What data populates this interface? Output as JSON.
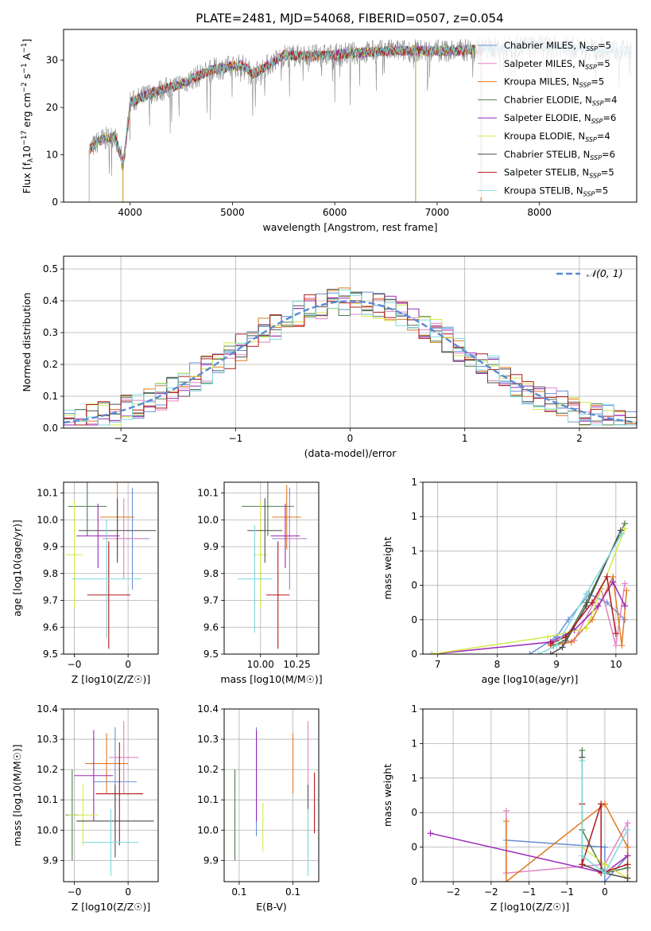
{
  "figure": {
    "title": "PLATE=2481, MJD=54068, FIBERID=0507, z=0.054"
  },
  "models": [
    {
      "name": "Chabrier MILES",
      "nssp": "5",
      "color": "#6a8fd6"
    },
    {
      "name": "Salpeter MILES",
      "nssp": "5",
      "color": "#e383c4"
    },
    {
      "name": "Kroupa MILES",
      "nssp": "5",
      "color": "#e07b22"
    },
    {
      "name": "Chabrier ELODIE",
      "nssp": "4",
      "color": "#4f7d4f"
    },
    {
      "name": "Salpeter ELODIE",
      "nssp": "6",
      "color": "#9a28b8"
    },
    {
      "name": "Kroupa ELODIE",
      "nssp": "4",
      "color": "#d5e84a"
    },
    {
      "name": "Chabrier STELIB",
      "nssp": "6",
      "color": "#4d4d4d"
    },
    {
      "name": "Salpeter STELIB",
      "nssp": "5",
      "color": "#b0181c"
    },
    {
      "name": "Kroupa STELIB",
      "nssp": "5",
      "color": "#7fd9dd"
    }
  ],
  "chart_data": [
    {
      "id": "spectrum",
      "type": "line",
      "xlabel": "wavelength [Angstrom, rest frame]",
      "ylabel": "Flux [f_λ 10^-17 erg cm^-2 s^-1 A^-1]",
      "xlim": [
        3350,
        8950
      ],
      "ylim": [
        0,
        36.5
      ],
      "xticks": [
        4000,
        5000,
        6000,
        7000,
        8000
      ],
      "yticks": [
        0,
        10,
        20,
        30
      ],
      "legend_position": "upper-right",
      "spectrum_anchors": [
        [
          3600,
          11
        ],
        [
          3700,
          13
        ],
        [
          3850,
          14
        ],
        [
          3930,
          8
        ],
        [
          3960,
          13
        ],
        [
          4000,
          21
        ],
        [
          4200,
          23
        ],
        [
          4500,
          25
        ],
        [
          4800,
          28
        ],
        [
          5100,
          29
        ],
        [
          5200,
          27
        ],
        [
          5500,
          31
        ],
        [
          5900,
          31
        ],
        [
          6200,
          31.5
        ],
        [
          6500,
          32
        ],
        [
          6800,
          32
        ],
        [
          7200,
          32
        ],
        [
          7500,
          32.5
        ],
        [
          8000,
          33
        ],
        [
          8400,
          32.5
        ],
        [
          8900,
          32
        ]
      ]
    },
    {
      "id": "residuals",
      "type": "histogram",
      "xlabel": "(data-model)/error",
      "ylabel": "Normed distribution",
      "xlim": [
        -2.5,
        2.5
      ],
      "ylim": [
        0,
        0.54
      ],
      "xticks": [
        -2,
        -1,
        0,
        1,
        2
      ],
      "yticks": [
        0.0,
        0.1,
        0.2,
        0.3,
        0.4,
        0.5
      ],
      "reference_curve": "N(0,1)",
      "reference_label": "𝒩(0, 1)",
      "legend_position": "upper-right",
      "bin_width": 0.1
    },
    {
      "id": "age-vs-Z",
      "type": "errorbar",
      "xlabel": "Z [log10(Z/Z☉)]",
      "ylabel": "age  [log10(age/yr)]",
      "xlim": [
        -0.3,
        0.14
      ],
      "ylim": [
        9.5,
        10.14
      ],
      "xticks": [
        -0.25,
        0.0
      ],
      "yticks": [
        9.5,
        9.6,
        9.7,
        9.8,
        9.9,
        10.0,
        10.1
      ],
      "points": [
        {
          "x": 0.02,
          "y": 9.93,
          "xerr": 0.08,
          "yerr": 0.19
        },
        {
          "x": -0.02,
          "y": 9.93,
          "xerr": 0.1,
          "yerr": 0.15
        },
        {
          "x": -0.05,
          "y": 10.01,
          "xerr": 0.08,
          "yerr": 0.15
        },
        {
          "x": -0.19,
          "y": 10.05,
          "xerr": 0.09,
          "yerr": 0.11
        },
        {
          "x": -0.14,
          "y": 9.94,
          "xerr": 0.1,
          "yerr": 0.12
        },
        {
          "x": -0.25,
          "y": 9.87,
          "xerr": 0.04,
          "yerr": 0.2
        },
        {
          "x": -0.05,
          "y": 9.96,
          "xerr": 0.18,
          "yerr": 0.12
        },
        {
          "x": -0.09,
          "y": 9.72,
          "xerr": 0.1,
          "yerr": 0.2
        },
        {
          "x": -0.1,
          "y": 9.78,
          "xerr": 0.16,
          "yerr": 0.22
        }
      ]
    },
    {
      "id": "age-vs-mass",
      "type": "errorbar",
      "xlabel": "mass [log10(M/M☉)]",
      "ylabel": "",
      "xlim": [
        9.75,
        10.4
      ],
      "ylim": [
        9.5,
        10.14
      ],
      "xticks": [
        10.0,
        10.25
      ],
      "yticks": [
        9.5,
        9.6,
        9.7,
        9.8,
        9.9,
        10.0,
        10.1
      ],
      "points": [
        {
          "x": 10.2,
          "y": 9.93,
          "xerr": 0.12,
          "yerr": 0.19
        },
        {
          "x": 10.2,
          "y": 9.93,
          "xerr": 0.09,
          "yerr": 0.15
        },
        {
          "x": 10.18,
          "y": 10.01,
          "xerr": 0.1,
          "yerr": 0.12
        },
        {
          "x": 10.05,
          "y": 10.05,
          "xerr": 0.18,
          "yerr": 0.11
        },
        {
          "x": 10.17,
          "y": 9.94,
          "xerr": 0.1,
          "yerr": 0.12
        },
        {
          "x": 10.0,
          "y": 9.87,
          "xerr": 0.05,
          "yerr": 0.2
        },
        {
          "x": 10.03,
          "y": 9.96,
          "xerr": 0.12,
          "yerr": 0.12
        },
        {
          "x": 10.12,
          "y": 9.72,
          "xerr": 0.08,
          "yerr": 0.2
        },
        {
          "x": 9.96,
          "y": 9.78,
          "xerr": 0.12,
          "yerr": 0.2
        }
      ]
    },
    {
      "id": "weight-vs-age",
      "type": "line",
      "xlabel": "age  [log10(age/yr)]",
      "ylabel": "mass weight",
      "xlim": [
        6.75,
        10.35
      ],
      "ylim": [
        0,
        1.0
      ],
      "xticks": [
        7,
        8,
        9,
        10
      ],
      "yticks": [
        0.0,
        0.2,
        0.4,
        0.6,
        0.8,
        1.0
      ],
      "series": [
        {
          "x": [
            8.55,
            9.0,
            9.2,
            9.55,
            9.85,
            10.15
          ],
          "y": [
            0.0,
            0.1,
            0.2,
            0.35,
            0.3,
            0.2
          ]
        },
        {
          "x": [
            8.9,
            9.3,
            9.75,
            10.0,
            10.15
          ],
          "y": [
            0.05,
            0.08,
            0.38,
            0.05,
            0.41
          ]
        },
        {
          "x": [
            8.9,
            9.25,
            9.6,
            9.95,
            10.1,
            10.18
          ],
          "y": [
            0.05,
            0.07,
            0.2,
            0.45,
            0.05,
            0.37
          ]
        },
        {
          "x": [
            8.95,
            9.15,
            9.5,
            10.15
          ],
          "y": [
            0.05,
            0.08,
            0.3,
            0.76
          ]
        },
        {
          "x": [
            6.9,
            8.9,
            9.3,
            9.7,
            9.95,
            10.15
          ],
          "y": [
            0.0,
            0.07,
            0.14,
            0.28,
            0.42,
            0.28
          ]
        },
        {
          "x": [
            6.9,
            8.85,
            9.5,
            10.15
          ],
          "y": [
            0.0,
            0.1,
            0.15,
            0.73
          ]
        },
        {
          "x": [
            8.9,
            9.1,
            9.5,
            10.08
          ],
          "y": [
            0.0,
            0.04,
            0.28,
            0.72
          ]
        },
        {
          "x": [
            8.9,
            9.15,
            9.6,
            9.85,
            10.0
          ],
          "y": [
            0.06,
            0.1,
            0.3,
            0.45,
            0.12
          ]
        },
        {
          "x": [
            8.7,
            9.0,
            9.5,
            10.1
          ],
          "y": [
            0.0,
            0.05,
            0.35,
            0.7
          ]
        }
      ]
    },
    {
      "id": "mass-vs-Z",
      "type": "errorbar",
      "xlabel": "Z [log10(Z/Z☉)]",
      "ylabel": "mass [log10(M/M☉)]",
      "xlim": [
        -0.3,
        0.14
      ],
      "ylim": [
        9.83,
        10.4
      ],
      "xticks": [
        -0.25,
        0.0
      ],
      "yticks": [
        9.9,
        10.0,
        10.1,
        10.2,
        10.3,
        10.4
      ],
      "points": [
        {
          "x": -0.06,
          "y": 10.16,
          "xerr": 0.1,
          "yerr": 0.18
        },
        {
          "x": -0.02,
          "y": 10.24,
          "xerr": 0.07,
          "yerr": 0.12
        },
        {
          "x": -0.1,
          "y": 10.22,
          "xerr": 0.1,
          "yerr": 0.1
        },
        {
          "x": -0.26,
          "y": 10.05,
          "xerr": 0.03,
          "yerr": 0.15
        },
        {
          "x": -0.16,
          "y": 10.18,
          "xerr": 0.09,
          "yerr": 0.15
        },
        {
          "x": -0.21,
          "y": 10.05,
          "xerr": 0.07,
          "yerr": 0.1
        },
        {
          "x": -0.06,
          "y": 10.03,
          "xerr": 0.18,
          "yerr": 0.12
        },
        {
          "x": -0.04,
          "y": 10.12,
          "xerr": 0.11,
          "yerr": 0.17
        },
        {
          "x": -0.08,
          "y": 9.96,
          "xerr": 0.13,
          "yerr": 0.11
        }
      ]
    },
    {
      "id": "mass-vs-EBV",
      "type": "errorbar",
      "xlabel": "E(B-V)",
      "ylabel": "",
      "xlim": [
        0.068,
        0.112
      ],
      "ylim": [
        9.83,
        10.4
      ],
      "xticks": [
        0.075,
        0.1
      ],
      "yticks": [
        9.9,
        10.0,
        10.1,
        10.2,
        10.3,
        10.4
      ],
      "points": [
        {
          "x": 0.083,
          "y": 10.16,
          "xerr": 0.0,
          "yerr": 0.18
        },
        {
          "x": 0.107,
          "y": 10.24,
          "xerr": 0.0,
          "yerr": 0.12
        },
        {
          "x": 0.1,
          "y": 10.22,
          "xerr": 0.0,
          "yerr": 0.1
        },
        {
          "x": 0.073,
          "y": 10.05,
          "xerr": 0.0,
          "yerr": 0.15
        },
        {
          "x": 0.083,
          "y": 10.18,
          "xerr": 0.0,
          "yerr": 0.15
        },
        {
          "x": 0.086,
          "y": 10.01,
          "xerr": 0.0,
          "yerr": 0.08
        },
        {
          "x": 0.107,
          "y": 10.03,
          "xerr": 0.0,
          "yerr": 0.12
        },
        {
          "x": 0.11,
          "y": 10.09,
          "xerr": 0.0,
          "yerr": 0.1
        },
        {
          "x": 0.107,
          "y": 9.96,
          "xerr": 0.0,
          "yerr": 0.11
        }
      ]
    },
    {
      "id": "weight-vs-Z",
      "type": "line",
      "xlabel": "Z [log10(Z/Z☉)]",
      "ylabel": "mass weight",
      "xlim": [
        -2.4,
        0.42
      ],
      "ylim": [
        0,
        1.0
      ],
      "xticks": [
        -2.0,
        -1.5,
        -1.0,
        -0.5,
        0.0
      ],
      "yticks": [
        0.0,
        0.2,
        0.4,
        0.6,
        0.8,
        1.0
      ],
      "series": [
        {
          "x": [
            -1.3,
            0.0,
            0.0,
            0.3,
            0.3
          ],
          "y": [
            0.24,
            0.2,
            0.0,
            0.15,
            0.02
          ]
        },
        {
          "x": [
            -1.3,
            -1.3,
            0.0,
            0.3,
            0.3
          ],
          "y": [
            0.41,
            0.05,
            0.1,
            0.34,
            0.0
          ]
        },
        {
          "x": [
            -1.3,
            -1.3,
            0.0,
            0.3,
            0.3
          ],
          "y": [
            0.35,
            0.0,
            0.45,
            0.2,
            0.0
          ]
        },
        {
          "x": [
            -0.3,
            -0.3,
            0.0,
            0.3
          ],
          "y": [
            0.76,
            0.3,
            0.05,
            0.08
          ]
        },
        {
          "x": [
            -2.3,
            0.0,
            0.3
          ],
          "y": [
            0.28,
            0.05,
            0.15
          ]
        },
        {
          "x": [
            -0.3,
            -0.3,
            0.0,
            0.3
          ],
          "y": [
            0.72,
            0.2,
            0.1,
            0.02
          ]
        },
        {
          "x": [
            -0.3,
            -0.3,
            0.0,
            0.3
          ],
          "y": [
            0.72,
            0.1,
            0.05,
            0.02
          ]
        },
        {
          "x": [
            -0.3,
            -0.3,
            -0.05,
            -0.05,
            0.3
          ],
          "y": [
            0.45,
            0.1,
            0.45,
            0.05,
            0.1
          ]
        },
        {
          "x": [
            -0.3,
            -0.3,
            0.0,
            0.3
          ],
          "y": [
            0.7,
            0.15,
            0.05,
            0.3
          ]
        }
      ]
    }
  ]
}
